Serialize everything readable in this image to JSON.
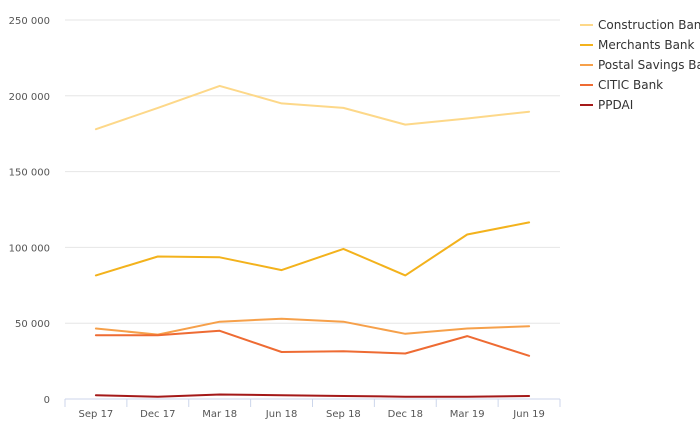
{
  "chart_data": {
    "type": "line",
    "categories": [
      "Sep 17",
      "Dec 17",
      "Mar 18",
      "Jun 18",
      "Sep 18",
      "Dec 18",
      "Mar 19",
      "Jun 19"
    ],
    "y_ticks": [
      {
        "value": 0,
        "label": "0"
      },
      {
        "value": 50000,
        "label": "50 000"
      },
      {
        "value": 100000,
        "label": "100 000"
      },
      {
        "value": 150000,
        "label": "150 000"
      },
      {
        "value": 200000,
        "label": "200 000"
      },
      {
        "value": 250000,
        "label": "250 000"
      }
    ],
    "ylim": [
      0,
      250000
    ],
    "grid": true,
    "legend_position": "right",
    "series": [
      {
        "name": "Construction Bank",
        "color": "#fdd889",
        "values": [
          178000,
          192000,
          206500,
          195000,
          192000,
          181000,
          185000,
          189500
        ]
      },
      {
        "name": "Merchants Bank",
        "color": "#f3b21c",
        "values": [
          81500,
          94000,
          93500,
          85000,
          99000,
          81500,
          108500,
          116500
        ]
      },
      {
        "name": "Postal Savings Bank",
        "color": "#f6a04a",
        "values": [
          46500,
          42500,
          51000,
          53000,
          51000,
          43000,
          46500,
          48000
        ]
      },
      {
        "name": "CITIC Bank",
        "color": "#ee6b33",
        "values": [
          42000,
          42000,
          45000,
          31000,
          31500,
          30000,
          41500,
          28500
        ]
      },
      {
        "name": "PPDAI",
        "color": "#a41919",
        "values": [
          2500,
          1500,
          3000,
          2500,
          2000,
          1500,
          1500,
          2000
        ]
      }
    ]
  }
}
